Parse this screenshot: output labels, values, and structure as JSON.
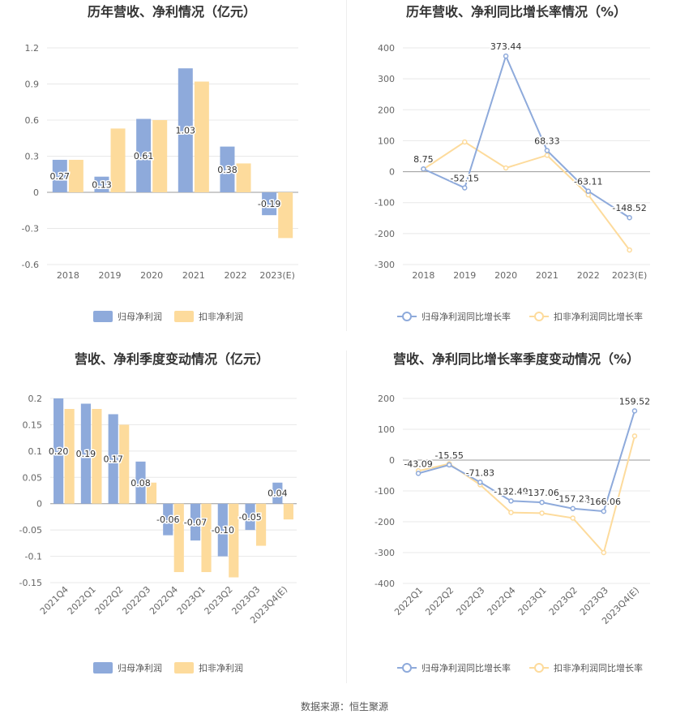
{
  "chart_data": [
    {
      "type": "bar",
      "title": "历年营收、净利情况（亿元）",
      "categories": [
        "2018",
        "2019",
        "2020",
        "2021",
        "2022",
        "2023(E)"
      ],
      "ylim": [
        -0.6,
        1.2
      ],
      "yticks": [
        -0.6,
        -0.3,
        0,
        0.3,
        0.6,
        0.9,
        1.2
      ],
      "ytick_labels": [
        "-0.6",
        "-0.3",
        "0",
        "0.3",
        "0.6",
        "0.9",
        "1.2"
      ],
      "series": [
        {
          "name": "归母净利润",
          "values": [
            0.27,
            0.13,
            0.61,
            1.03,
            0.38,
            -0.19
          ],
          "labels": [
            "0.27",
            "0.13",
            "0.61",
            "1.03",
            "0.38",
            "-0.19"
          ],
          "color": "#8eaadb"
        },
        {
          "name": "扣非净利润",
          "values": [
            0.27,
            0.53,
            0.6,
            0.92,
            0.24,
            -0.38
          ],
          "color": "#fddb9c"
        }
      ]
    },
    {
      "type": "line",
      "title": "历年营收、净利同比增长率情况（%）",
      "categories": [
        "2018",
        "2019",
        "2020",
        "2021",
        "2022",
        "2023(E)"
      ],
      "ylim": [
        -300,
        400
      ],
      "yticks": [
        -300,
        -200,
        -100,
        0,
        100,
        200,
        300,
        400
      ],
      "ytick_labels": [
        "-300",
        "-200",
        "-100",
        "0",
        "100",
        "200",
        "300",
        "400"
      ],
      "series": [
        {
          "name": "归母净利润同比增长率",
          "values": [
            8.75,
            -52.15,
            373.44,
            68.33,
            -63.11,
            -148.52
          ],
          "labels": [
            "8.75",
            "-52.15",
            "373.44",
            "68.33",
            "-63.11",
            "-148.52"
          ],
          "color": "#8eaadb"
        },
        {
          "name": "扣非净利润同比增长率",
          "values": [
            8,
            96,
            12,
            53,
            -75,
            -253
          ],
          "color": "#fddb9c"
        }
      ]
    },
    {
      "type": "bar",
      "title": "营收、净利季度变动情况（亿元）",
      "categories": [
        "2021Q4",
        "2022Q1",
        "2022Q2",
        "2022Q3",
        "2022Q4",
        "2023Q1",
        "2023Q2",
        "2023Q3",
        "2023Q4(E)"
      ],
      "ylim": [
        -0.15,
        0.2
      ],
      "yticks": [
        -0.15,
        -0.1,
        -0.05,
        0,
        0.05,
        0.1,
        0.15,
        0.2
      ],
      "ytick_labels": [
        "-0.15",
        "-0.1",
        "-0.05",
        "0",
        "0.05",
        "0.1",
        "0.15",
        "0.2"
      ],
      "series": [
        {
          "name": "归母净利润",
          "values": [
            0.2,
            0.19,
            0.17,
            0.08,
            -0.06,
            -0.07,
            -0.1,
            -0.05,
            0.04
          ],
          "labels": [
            "0.20",
            "0.19",
            "0.17",
            "0.08",
            "-0.06",
            "-0.07",
            "-0.10",
            "-0.05",
            "0.04"
          ],
          "color": "#8eaadb"
        },
        {
          "name": "扣非净利润",
          "values": [
            0.18,
            0.18,
            0.15,
            0.04,
            -0.13,
            -0.13,
            -0.14,
            -0.08,
            -0.03
          ],
          "color": "#fddb9c"
        }
      ]
    },
    {
      "type": "line",
      "title": "营收、净利同比增长率季度变动情况（%）",
      "categories": [
        "2022Q1",
        "2022Q2",
        "2022Q3",
        "2022Q4",
        "2023Q1",
        "2023Q2",
        "2023Q3",
        "2023Q4(E)"
      ],
      "ylim": [
        -400,
        200
      ],
      "yticks": [
        -400,
        -300,
        -200,
        -100,
        0,
        100,
        200
      ],
      "ytick_labels": [
        "-400",
        "-300",
        "-200",
        "-100",
        "0",
        "100",
        "200"
      ],
      "series": [
        {
          "name": "归母净利润同比增长率",
          "values": [
            -43.09,
            -15.55,
            -71.83,
            -132.49,
            -137.06,
            -157.23,
            -166.06,
            159.52
          ],
          "labels": [
            "-43.09",
            "-15.55",
            "-71.83",
            "-132.49",
            "-137.06",
            "-157.23",
            "-166.06",
            "159.52"
          ],
          "color": "#8eaadb"
        },
        {
          "name": "扣非净利润同比增长率",
          "values": [
            -35,
            -12,
            -80,
            -170,
            -172,
            -188,
            -300,
            78
          ],
          "color": "#fddb9c"
        }
      ]
    }
  ],
  "footer": {
    "source": "数据来源：恒生聚源"
  }
}
